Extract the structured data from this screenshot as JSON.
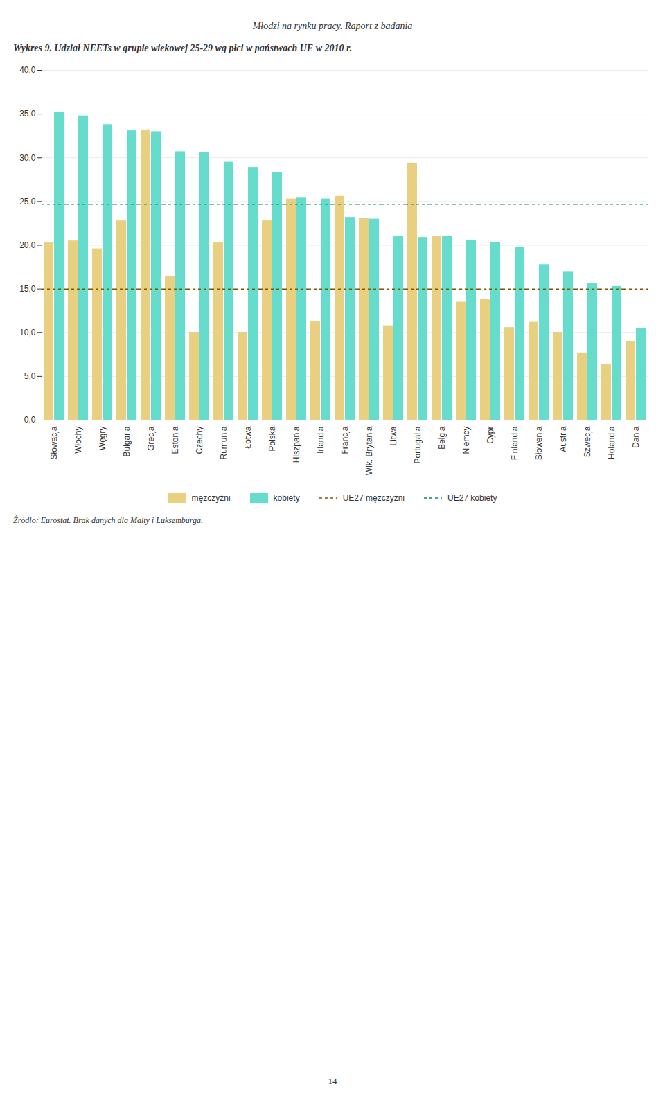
{
  "chart_data": {
    "type": "bar",
    "title": "Wykres 9. Udział NEETs w grupie wiekowej 25-29 wg płci w państwach UE w 2010 r.",
    "annotations": [
      "Młodzi na rynku pracy. Raport z badania",
      "Źródło: Eurostat. Brak danych dla Malty i Luksemburga.",
      "14"
    ],
    "categories": [
      "Słowacja",
      "Włochy",
      "Węgry",
      "Bułgaria",
      "Grecja",
      "Estonia",
      "Czechy",
      "Rumunia",
      "Łotwa",
      "Polska",
      "Hiszpania",
      "Irlandia",
      "Francja",
      "Wlk. Brytania",
      "Litwa",
      "Portugalia",
      "Belgia",
      "Niemcy",
      "Cypr",
      "Finlandia",
      "Słowenia",
      "Austria",
      "Szwecja",
      "Holandia",
      "Dania"
    ],
    "series": [
      {
        "name": "mężczyźni",
        "color": "#E8D080",
        "values": [
          20.3,
          20.5,
          19.6,
          22.8,
          33.2,
          16.4,
          10.0,
          20.3,
          10.0,
          22.8,
          25.3,
          11.3,
          25.6,
          23.1,
          10.8,
          29.4,
          21.0,
          13.5,
          13.8,
          10.6,
          11.2,
          10.0,
          7.7,
          6.4,
          9.0
        ]
      },
      {
        "name": "kobiety",
        "color": "#66DDCC",
        "values": [
          35.2,
          34.8,
          33.8,
          33.1,
          33.0,
          30.7,
          30.6,
          29.5,
          28.9,
          28.3,
          25.4,
          25.3,
          23.2,
          23.0,
          21.0,
          20.9,
          21.0,
          20.6,
          20.3,
          19.8,
          17.8,
          17.0,
          15.6,
          15.3,
          10.5
        ]
      },
      {
        "name": "UE27 mężczyźni",
        "type": "hline",
        "color": "#7B5A00",
        "line_style": "dashed",
        "value": 15.0
      },
      {
        "name": "UE27 kobiety",
        "type": "hline",
        "color": "#008B70",
        "line_style": "dashed",
        "value": 24.7
      }
    ],
    "ylim": [
      0,
      40
    ],
    "yticks": [
      {
        "value": 0,
        "label": "0,0"
      },
      {
        "value": 5,
        "label": "5,0"
      },
      {
        "value": 10,
        "label": "10,0"
      },
      {
        "value": 15,
        "label": "15,0"
      },
      {
        "value": 20,
        "label": "20,0"
      },
      {
        "value": 25,
        "label": "25,0"
      },
      {
        "value": 30,
        "label": "30,0"
      },
      {
        "value": 35,
        "label": "35,0"
      },
      {
        "value": 40,
        "label": "40,0"
      }
    ],
    "grid": true,
    "legend": "bottom"
  }
}
